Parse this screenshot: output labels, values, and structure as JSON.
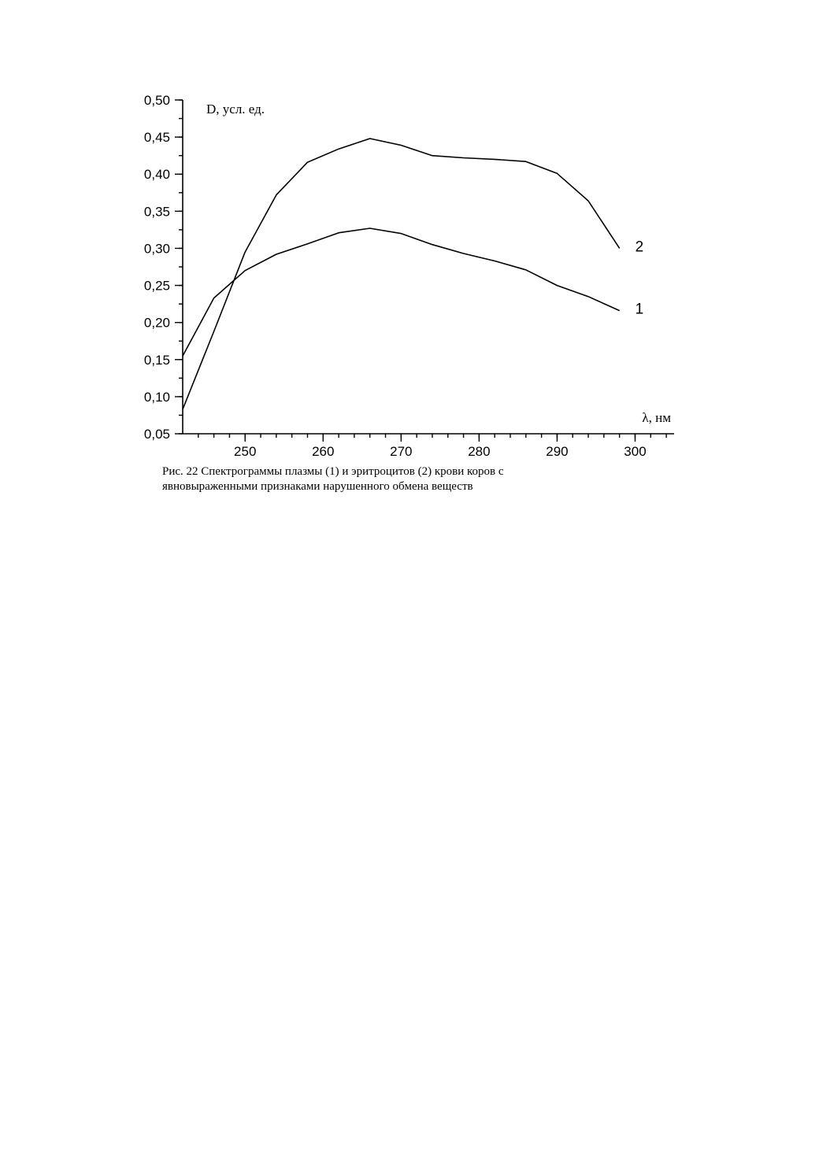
{
  "chart_data": {
    "type": "line",
    "ylabel": "D, усл. ед.",
    "xlabel": "λ, нм",
    "xlim": [
      242,
      305
    ],
    "ylim": [
      0.05,
      0.5
    ],
    "x_ticks": [
      250,
      260,
      270,
      280,
      290,
      300
    ],
    "x_tick_labels": [
      "250",
      "260",
      "270",
      "280",
      "290",
      "300"
    ],
    "y_ticks": [
      0.05,
      0.1,
      0.15,
      0.2,
      0.25,
      0.3,
      0.35,
      0.4,
      0.45,
      0.5
    ],
    "y_tick_labels": [
      "0,05",
      "0,10",
      "0,15",
      "0,20",
      "0,25",
      "0,30",
      "0,35",
      "0,40",
      "0,45",
      "0,50"
    ],
    "grid": false,
    "series": [
      {
        "name": "1",
        "points": [
          [
            242,
            0.155
          ],
          [
            246,
            0.233
          ],
          [
            250,
            0.27
          ],
          [
            254,
            0.292
          ],
          [
            258,
            0.306
          ],
          [
            262,
            0.321
          ],
          [
            266,
            0.327
          ],
          [
            270,
            0.32
          ],
          [
            274,
            0.305
          ],
          [
            278,
            0.293
          ],
          [
            282,
            0.283
          ],
          [
            286,
            0.271
          ],
          [
            290,
            0.25
          ],
          [
            294,
            0.235
          ],
          [
            298,
            0.216
          ]
        ]
      },
      {
        "name": "2",
        "points": [
          [
            242,
            0.083
          ],
          [
            246,
            0.188
          ],
          [
            250,
            0.295
          ],
          [
            254,
            0.372
          ],
          [
            258,
            0.416
          ],
          [
            262,
            0.434
          ],
          [
            266,
            0.448
          ],
          [
            270,
            0.439
          ],
          [
            274,
            0.425
          ],
          [
            278,
            0.422
          ],
          [
            282,
            0.42
          ],
          [
            286,
            0.417
          ],
          [
            290,
            0.401
          ],
          [
            294,
            0.364
          ],
          [
            298,
            0.3
          ]
        ]
      }
    ]
  },
  "caption": {
    "line1": "Рис. 22 Спектрограммы плазмы (1) и эритроцитов (2) крови коров с",
    "line2": "явновыраженными признаками нарушенного обмена веществ"
  }
}
